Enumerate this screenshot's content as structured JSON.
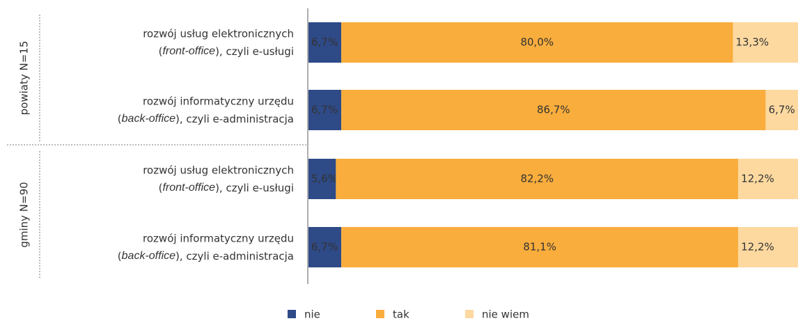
{
  "chart_data": {
    "type": "stacked-bar-horizontal",
    "categories": [
      [
        "rozwój usług elektronicznych",
        "(",
        "front-office",
        "), czyli e-usługi"
      ],
      [
        "rozwój informatyczny urzędu",
        "(",
        "back-office",
        "), czyli e-administracja"
      ],
      [
        "rozwój usług elektronicznych",
        "(",
        "front-office",
        "), czyli e-usługi"
      ],
      [
        "rozwój informatyczny urzędu",
        "(",
        "back-office",
        "), czyli e-administracja"
      ]
    ],
    "groups": [
      {
        "label": "powiaty N=15",
        "rows": [
          0,
          1
        ]
      },
      {
        "label": "gminy N=90",
        "rows": [
          2,
          3
        ]
      }
    ],
    "xlim": [
      0,
      100
    ],
    "series": [
      {
        "name": "nie",
        "color": "#2e4a87",
        "values": [
          6.7,
          6.7,
          5.6,
          6.7
        ],
        "value_labels": [
          "6,7%",
          "6,7%",
          "5,6%",
          "6,7%"
        ]
      },
      {
        "name": "tak",
        "color": "#f9ad3c",
        "values": [
          80.0,
          86.7,
          82.2,
          81.1
        ],
        "value_labels": [
          "80,0%",
          "86,7%",
          "82,2%",
          "81,1%"
        ]
      },
      {
        "name": "nie wiem",
        "color": "#fdd9a0",
        "values": [
          13.3,
          6.7,
          12.2,
          12.2
        ],
        "value_labels": [
          "13,3%",
          "6,7%",
          "12,2%",
          "12,2%"
        ]
      }
    ],
    "legend": "bottom"
  }
}
